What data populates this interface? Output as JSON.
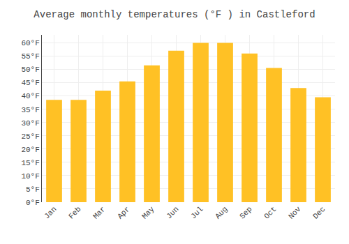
{
  "chart_data": {
    "type": "bar",
    "title": "Average monthly temperatures (°F ) in Castleford",
    "categories": [
      "Jan",
      "Feb",
      "Mar",
      "Apr",
      "May",
      "Jun",
      "Jul",
      "Aug",
      "Sep",
      "Oct",
      "Nov",
      "Dec"
    ],
    "values": [
      38.5,
      38.5,
      42,
      45.5,
      51.5,
      57,
      60,
      60,
      56,
      50.5,
      43,
      39.5
    ],
    "color": "#FFC125",
    "ylim": [
      0,
      63
    ],
    "yticks": [
      {
        "value": 0,
        "label": "0°F"
      },
      {
        "value": 5,
        "label": "5°F"
      },
      {
        "value": 10,
        "label": "10°F"
      },
      {
        "value": 15,
        "label": "15°F"
      },
      {
        "value": 20,
        "label": "20°F"
      },
      {
        "value": 25,
        "label": "25°F"
      },
      {
        "value": 30,
        "label": "30°F"
      },
      {
        "value": 35,
        "label": "35°F"
      },
      {
        "value": 40,
        "label": "40°F"
      },
      {
        "value": 45,
        "label": "45°F"
      },
      {
        "value": 50,
        "label": "50°F"
      },
      {
        "value": 55,
        "label": "55°F"
      },
      {
        "value": 60,
        "label": "60°F"
      }
    ],
    "grid": true
  }
}
